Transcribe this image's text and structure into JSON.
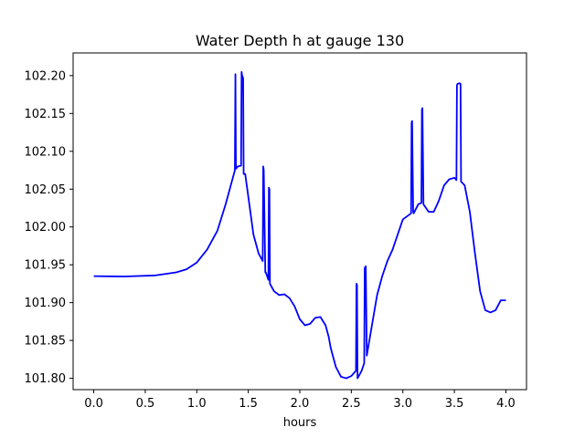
{
  "chart_data": {
    "type": "line",
    "title": "Water Depth h at gauge 130",
    "xlabel": "hours",
    "ylabel": "",
    "xlim": [
      -0.2,
      4.2
    ],
    "ylim": [
      101.785,
      102.23
    ],
    "xticks": [
      0.0,
      0.5,
      1.0,
      1.5,
      2.0,
      2.5,
      3.0,
      3.5,
      4.0
    ],
    "xtick_labels": [
      "0.0",
      "0.5",
      "1.0",
      "1.5",
      "2.0",
      "2.5",
      "3.0",
      "3.5",
      "4.0"
    ],
    "yticks": [
      101.8,
      101.85,
      101.9,
      101.95,
      102.0,
      102.05,
      102.1,
      102.15,
      102.2
    ],
    "ytick_labels": [
      "101.80",
      "101.85",
      "101.90",
      "101.95",
      "102.00",
      "102.05",
      "102.10",
      "102.15",
      "102.20"
    ],
    "grid": false,
    "series": [
      {
        "color": "#0000ff",
        "x": [
          0.0,
          0.3,
          0.6,
          0.8,
          0.9,
          1.0,
          1.1,
          1.2,
          1.28,
          1.34,
          1.37,
          1.375,
          1.38,
          1.4,
          1.43,
          1.435,
          1.44,
          1.45,
          1.455,
          1.46,
          1.465,
          1.47,
          1.5,
          1.55,
          1.6,
          1.64,
          1.645,
          1.65,
          1.665,
          1.67,
          1.695,
          1.7,
          1.705,
          1.71,
          1.75,
          1.8,
          1.85,
          1.9,
          1.95,
          2.0,
          2.05,
          2.1,
          2.15,
          2.2,
          2.25,
          2.28,
          2.3,
          2.35,
          2.4,
          2.45,
          2.5,
          2.545,
          2.55,
          2.555,
          2.56,
          2.6,
          2.625,
          2.63,
          2.64,
          2.65,
          2.7,
          2.75,
          2.8,
          2.85,
          2.9,
          3.0,
          3.08,
          3.085,
          3.09,
          3.1,
          3.105,
          3.15,
          3.18,
          3.185,
          3.19,
          3.2,
          3.25,
          3.3,
          3.35,
          3.4,
          3.45,
          3.5,
          3.52,
          3.525,
          3.53,
          3.55,
          3.56,
          3.565,
          3.6,
          3.65,
          3.7,
          3.75,
          3.8,
          3.85,
          3.9,
          3.95,
          4.0
        ],
        "y": [
          101.935,
          101.9345,
          101.936,
          101.94,
          101.944,
          101.953,
          101.97,
          101.995,
          102.03,
          102.06,
          102.075,
          102.202,
          102.077,
          102.08,
          102.081,
          102.205,
          102.2,
          102.197,
          102.07,
          102.07,
          102.07,
          102.07,
          102.04,
          101.99,
          101.965,
          101.955,
          102.08,
          102.075,
          101.94,
          101.94,
          101.93,
          102.052,
          102.05,
          101.925,
          101.915,
          101.91,
          101.911,
          101.906,
          101.895,
          101.878,
          101.87,
          101.872,
          101.88,
          101.881,
          101.87,
          101.855,
          101.84,
          101.815,
          101.802,
          101.8,
          101.803,
          101.81,
          101.925,
          101.923,
          101.8,
          101.81,
          101.82,
          101.946,
          101.948,
          101.83,
          101.87,
          101.91,
          101.935,
          101.955,
          101.97,
          102.01,
          102.018,
          102.138,
          102.14,
          102.02,
          102.018,
          102.03,
          102.032,
          102.155,
          102.157,
          102.03,
          102.02,
          102.02,
          102.035,
          102.055,
          102.063,
          102.065,
          102.062,
          102.187,
          102.189,
          102.19,
          102.189,
          102.06,
          102.055,
          102.02,
          101.965,
          101.915,
          101.89,
          101.887,
          101.89,
          101.903,
          101.903
        ]
      }
    ]
  }
}
